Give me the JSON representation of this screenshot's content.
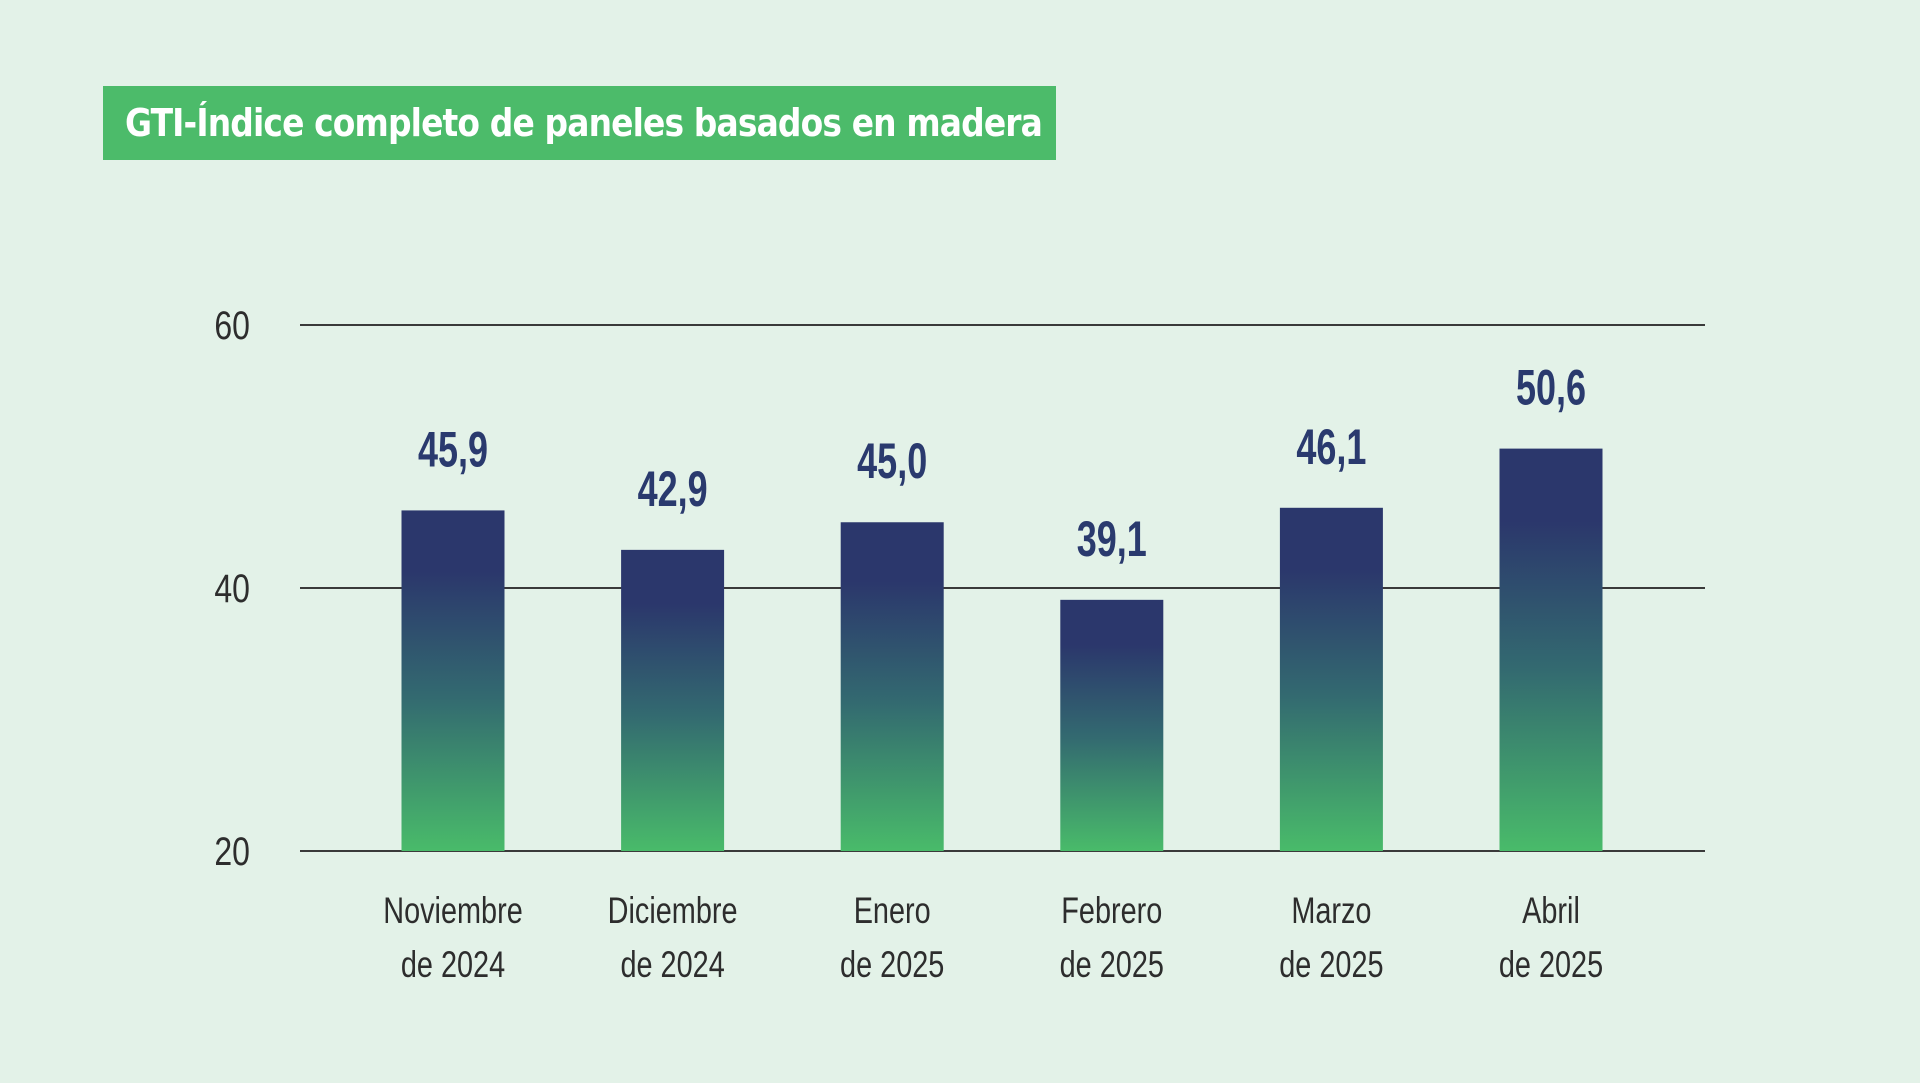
{
  "chart_data": {
    "type": "bar",
    "title": "GTI-Índice completo de paneles basados en madera",
    "categories": [
      [
        "Noviembre",
        "de 2024"
      ],
      [
        "Diciembre",
        "de 2024"
      ],
      [
        "Enero",
        "de 2025"
      ],
      [
        "Febrero",
        "de 2025"
      ],
      [
        "Marzo",
        "de 2025"
      ],
      [
        "Abril",
        "de 2025"
      ]
    ],
    "values": [
      45.9,
      42.9,
      45.0,
      39.1,
      46.1,
      50.6
    ],
    "value_labels": [
      "45,9",
      "42,9",
      "45,0",
      "39,1",
      "46,1",
      "50,6"
    ],
    "yticks": [
      20,
      40,
      60
    ],
    "ytick_labels": [
      "20",
      "40",
      "60"
    ],
    "ylim": [
      20,
      60
    ],
    "grid": true,
    "legend": "none",
    "colors": {
      "bar_top": "#2b376c",
      "bar_bottom": "#49bb6a",
      "title_bg": "#4cbb6a",
      "value_text": "#2a3a6e",
      "gridline": "#3a3a3a",
      "background": "#e3f2e8"
    }
  }
}
